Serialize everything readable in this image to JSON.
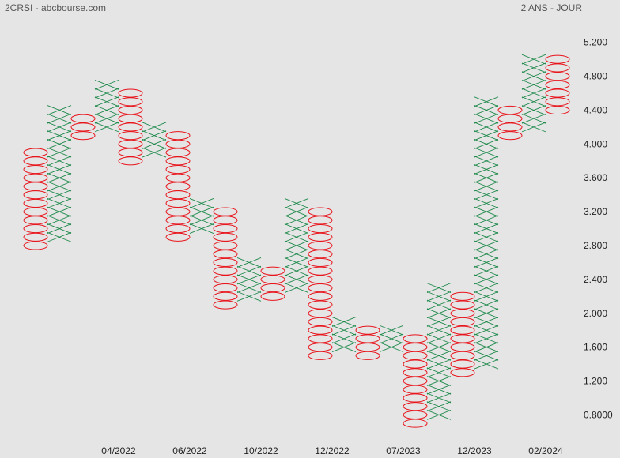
{
  "header": {
    "left": "2CRSI - abcbourse.com",
    "right": "2 ANS - JOUR"
  },
  "colors": {
    "x_mark": "#1f8a4c",
    "o_mark": "#e8141b",
    "background": "#e5e5e5"
  },
  "chart_data": {
    "type": "point-and-figure",
    "box_size": 0.1,
    "ylim": [
      0.6,
      5.4
    ],
    "y_ticks": [
      "5.200",
      "4.800",
      "4.400",
      "4.000",
      "3.600",
      "3.200",
      "2.800",
      "2.400",
      "2.000",
      "1.600",
      "1.200",
      "0.8000"
    ],
    "y_tick_values": [
      5.2,
      4.8,
      4.4,
      4.0,
      3.6,
      3.2,
      2.8,
      2.4,
      2.0,
      1.6,
      1.2,
      0.8
    ],
    "x_labels": [
      {
        "label": "04/2022",
        "column": 3.5
      },
      {
        "label": "06/2022",
        "column": 6.5
      },
      {
        "label": "10/2022",
        "column": 9.5
      },
      {
        "label": "12/2022",
        "column": 12.5
      },
      {
        "label": "07/2023",
        "column": 15.5
      },
      {
        "label": "12/2023",
        "column": 18.5
      },
      {
        "label": "02/2024",
        "column": 21.5
      }
    ],
    "columns": [
      {
        "type": "O",
        "high": 3.9,
        "low": 2.8
      },
      {
        "type": "X",
        "low": 2.9,
        "high": 4.4
      },
      {
        "type": "O",
        "high": 4.3,
        "low": 4.1
      },
      {
        "type": "X",
        "low": 4.2,
        "high": 4.7
      },
      {
        "type": "O",
        "high": 4.6,
        "low": 3.8
      },
      {
        "type": "X",
        "low": 3.9,
        "high": 4.2
      },
      {
        "type": "O",
        "high": 4.1,
        "low": 2.9
      },
      {
        "type": "X",
        "low": 3.0,
        "high": 3.3
      },
      {
        "type": "O",
        "high": 3.2,
        "low": 2.1
      },
      {
        "type": "X",
        "low": 2.2,
        "high": 2.6
      },
      {
        "type": "O",
        "high": 2.5,
        "low": 2.2
      },
      {
        "type": "X",
        "low": 2.3,
        "high": 3.3
      },
      {
        "type": "O",
        "high": 3.2,
        "low": 1.5
      },
      {
        "type": "X",
        "low": 1.6,
        "high": 1.9
      },
      {
        "type": "O",
        "high": 1.8,
        "low": 1.5
      },
      {
        "type": "X",
        "low": 1.6,
        "high": 1.8
      },
      {
        "type": "O",
        "high": 1.7,
        "low": 0.7
      },
      {
        "type": "X",
        "low": 0.8,
        "high": 2.3
      },
      {
        "type": "O",
        "high": 2.2,
        "low": 1.3
      },
      {
        "type": "X",
        "low": 1.4,
        "high": 4.5
      },
      {
        "type": "O",
        "high": 4.4,
        "low": 4.1
      },
      {
        "type": "X",
        "low": 4.2,
        "high": 5.0
      },
      {
        "type": "O",
        "high": 5.0,
        "low": 4.4
      }
    ]
  }
}
